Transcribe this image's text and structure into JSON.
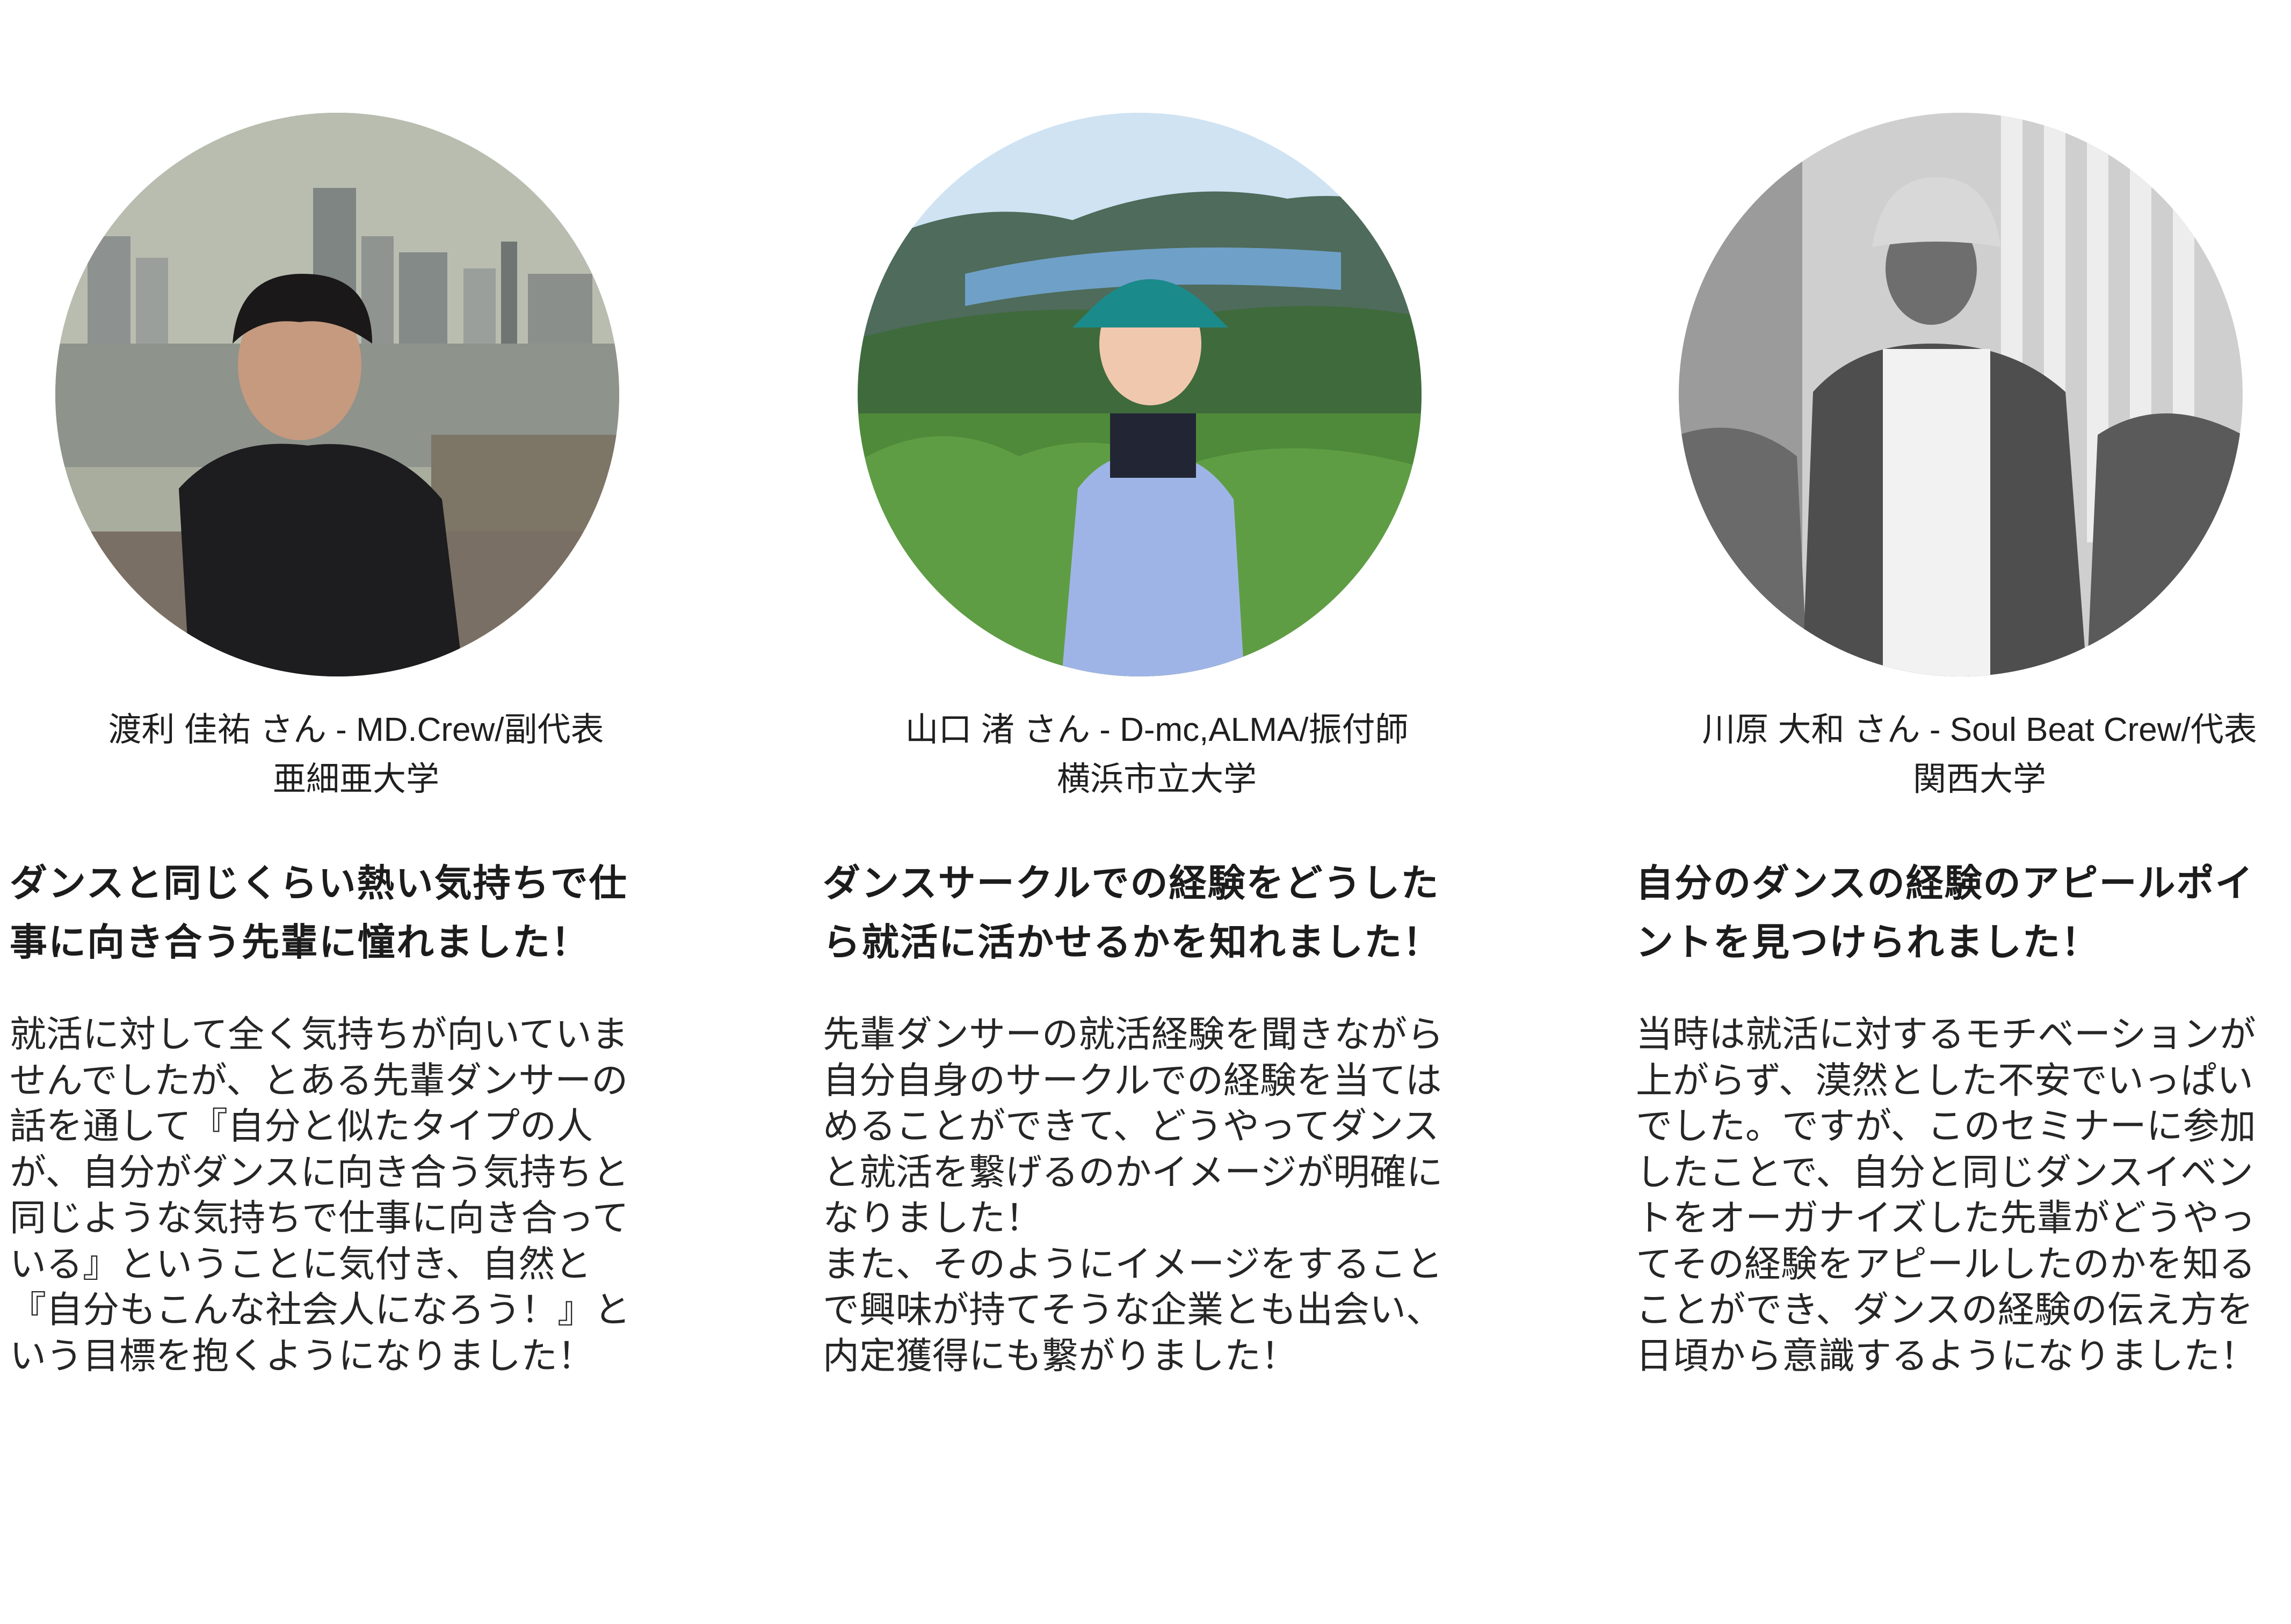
{
  "testimonials": [
    {
      "name_line": "渡利 佳祐 さん - MD.Crew/副代表",
      "school": "亜細亜大学",
      "headline": "ダンスと同じくらい熱い気持ちで仕事に向き合う先輩に憧れました！",
      "body": "就活に対して全く気持ちが向いていませんでしたが、とある先輩ダンサーの話を通して『自分と似たタイプの人が、自分がダンスに向き合う気持ちと同じような気持ちで仕事に向き合っている』ということに気付き、自然と『自分もこんな社会人になろう！』という目標を抱くようになりました！"
    },
    {
      "name_line": "山口 渚 さん - D-mc,ALMA/振付師",
      "school": "横浜市立大学",
      "headline": "ダンスサークルでの経験をどうしたら就活に活かせるかを知れました！",
      "body": "先輩ダンサーの就活経験を聞きながら自分自身のサークルでの経験を当てはめることができて、どうやってダンスと就活を繋げるのかイメージが明確になりました！\nまた、そのようにイメージをすることで興味が持てそうな企業とも出会い、内定獲得にも繋がりました！"
    },
    {
      "name_line": "川原 大和 さん - Soul Beat Crew/代表",
      "school": "関西大学",
      "headline": "自分のダンスの経験のアピールポイントを見つけられました！",
      "body": "当時は就活に対するモチベーションが上がらず、漠然とした不安でいっぱいでした。ですが、このセミナーに参加したことで、自分と同じダンスイベントをオーガナイズした先輩がどうやってその経験をアピールしたのかを知ることができ、ダンスの経験の伝え方を日頃から意識するようになりました！"
    }
  ]
}
